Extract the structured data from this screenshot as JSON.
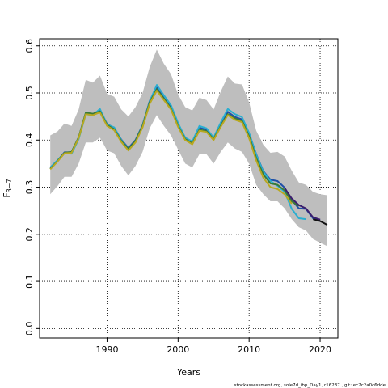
{
  "chart_data": {
    "type": "line",
    "xlabel": "Years",
    "ylabel_main": "F",
    "ylabel_sub": "3−7",
    "xlim": [
      1980.5,
      2022.5
    ],
    "ylim": [
      -0.02,
      0.615
    ],
    "xticks": [
      1990,
      2000,
      2010,
      2020
    ],
    "yticks": [
      0.0,
      0.1,
      0.2,
      0.3,
      0.4,
      0.5,
      0.6
    ],
    "ytick_labels": [
      "0.0",
      "0.1",
      "0.2",
      "0.3",
      "0.4",
      "0.5",
      "0.6"
    ],
    "grid": "dotted",
    "band": {
      "x": [
        1982,
        1983,
        1984,
        1985,
        1986,
        1987,
        1988,
        1989,
        1990,
        1991,
        1992,
        1993,
        1994,
        1995,
        1996,
        1997,
        1998,
        1999,
        2000,
        2001,
        2002,
        2003,
        2004,
        2005,
        2006,
        2007,
        2008,
        2009,
        2010,
        2011,
        2012,
        2013,
        2014,
        2015,
        2016,
        2017,
        2018,
        2019,
        2020,
        2021
      ],
      "upper": [
        0.41,
        0.418,
        0.435,
        0.43,
        0.465,
        0.528,
        0.522,
        0.537,
        0.498,
        0.492,
        0.465,
        0.45,
        0.47,
        0.5,
        0.555,
        0.592,
        0.562,
        0.54,
        0.497,
        0.47,
        0.463,
        0.49,
        0.485,
        0.465,
        0.503,
        0.535,
        0.52,
        0.518,
        0.48,
        0.42,
        0.39,
        0.373,
        0.375,
        0.365,
        0.335,
        0.31,
        0.305,
        0.29,
        0.285,
        0.283
      ],
      "lower": [
        0.285,
        0.302,
        0.322,
        0.322,
        0.35,
        0.395,
        0.395,
        0.405,
        0.378,
        0.372,
        0.345,
        0.325,
        0.345,
        0.375,
        0.425,
        0.453,
        0.43,
        0.41,
        0.38,
        0.35,
        0.342,
        0.37,
        0.37,
        0.35,
        0.375,
        0.395,
        0.382,
        0.375,
        0.35,
        0.305,
        0.285,
        0.27,
        0.27,
        0.255,
        0.232,
        0.215,
        0.208,
        0.19,
        0.182,
        0.175
      ]
    },
    "series": [
      {
        "color": "#1f4fa8",
        "x": [
          1982,
          1983,
          1984,
          1985,
          1986,
          1987,
          1988,
          1989,
          1990,
          1991,
          1992,
          1993,
          1994,
          1995,
          1996,
          1997,
          1998,
          1999,
          2000,
          2001,
          2002,
          2003,
          2004,
          2005,
          2006,
          2007,
          2008,
          2009,
          2010,
          2011,
          2012,
          2013,
          2014,
          2015,
          2016,
          2017,
          2018,
          2019,
          2020
        ],
        "y": [
          0.341,
          0.356,
          0.374,
          0.374,
          0.405,
          0.457,
          0.455,
          0.464,
          0.434,
          0.426,
          0.401,
          0.383,
          0.4,
          0.432,
          0.483,
          0.511,
          0.489,
          0.469,
          0.432,
          0.405,
          0.395,
          0.426,
          0.422,
          0.403,
          0.433,
          0.46,
          0.449,
          0.444,
          0.414,
          0.37,
          0.334,
          0.316,
          0.313,
          0.299,
          0.273,
          0.255,
          0.254,
          0.234,
          0.23
        ]
      },
      {
        "color": "#2aaed0",
        "x": [
          1982,
          1983,
          1984,
          1985,
          1986,
          1987,
          1988,
          1989,
          1990,
          1991,
          1992,
          1993,
          1994,
          1995,
          1996,
          1997,
          1998,
          1999,
          2000,
          2001,
          2002,
          2003,
          2004,
          2005,
          2006,
          2007,
          2008,
          2009,
          2010,
          2011,
          2012,
          2013,
          2014,
          2015,
          2016,
          2017,
          2018
        ],
        "y": [
          0.342,
          0.357,
          0.372,
          0.371,
          0.402,
          0.455,
          0.453,
          0.466,
          0.433,
          0.427,
          0.4,
          0.381,
          0.398,
          0.431,
          0.482,
          0.517,
          0.495,
          0.474,
          0.436,
          0.405,
          0.397,
          0.43,
          0.425,
          0.405,
          0.437,
          0.466,
          0.455,
          0.449,
          0.415,
          0.369,
          0.333,
          0.313,
          0.303,
          0.29,
          0.254,
          0.234,
          0.232
        ]
      },
      {
        "color": "#3a7a38",
        "x": [
          1982,
          1983,
          1984,
          1985,
          1986,
          1987,
          1988,
          1989,
          1990,
          1991,
          1992,
          1993,
          1994,
          1995,
          1996,
          1997,
          1998,
          1999,
          2000,
          2001,
          2002,
          2003,
          2004,
          2005,
          2006,
          2007,
          2008,
          2009,
          2010,
          2011,
          2012,
          2013,
          2014,
          2015,
          2016,
          2017
        ],
        "y": [
          0.339,
          0.355,
          0.373,
          0.375,
          0.406,
          0.458,
          0.456,
          0.461,
          0.432,
          0.423,
          0.398,
          0.381,
          0.398,
          0.43,
          0.48,
          0.508,
          0.488,
          0.467,
          0.43,
          0.402,
          0.393,
          0.422,
          0.419,
          0.402,
          0.43,
          0.455,
          0.446,
          0.441,
          0.408,
          0.362,
          0.327,
          0.308,
          0.305,
          0.293,
          0.27,
          0.26
        ]
      },
      {
        "color": "#b8a820",
        "x": [
          1982,
          1983,
          1984,
          1985,
          1986,
          1987,
          1988,
          1989,
          1990,
          1991,
          1992,
          1993,
          1994,
          1995,
          1996,
          1997,
          1998,
          1999,
          2000,
          2001,
          2002,
          2003,
          2004,
          2005,
          2006,
          2007,
          2008,
          2009,
          2010,
          2011,
          2012,
          2013,
          2014,
          2015,
          2016
        ],
        "y": [
          0.338,
          0.354,
          0.372,
          0.373,
          0.404,
          0.455,
          0.453,
          0.459,
          0.43,
          0.421,
          0.396,
          0.378,
          0.395,
          0.427,
          0.477,
          0.505,
          0.485,
          0.465,
          0.428,
          0.4,
          0.391,
          0.42,
          0.417,
          0.4,
          0.428,
          0.453,
          0.443,
          0.438,
          0.404,
          0.357,
          0.32,
          0.3,
          0.296,
          0.285,
          0.265
        ]
      },
      {
        "color": "#3b1f6e",
        "x": [
          2015,
          2016,
          2017,
          2018,
          2019,
          2020
        ],
        "y": [
          0.298,
          0.276,
          0.262,
          0.255,
          0.236,
          0.231
        ]
      },
      {
        "color": "#111111",
        "x": [
          2019,
          2020,
          2021
        ],
        "y": [
          0.232,
          0.228,
          0.22
        ]
      }
    ]
  },
  "footer": "stockassessment.org, sole7d_ibp_Day1, r16237 , git: ec2c2a0c6dde"
}
